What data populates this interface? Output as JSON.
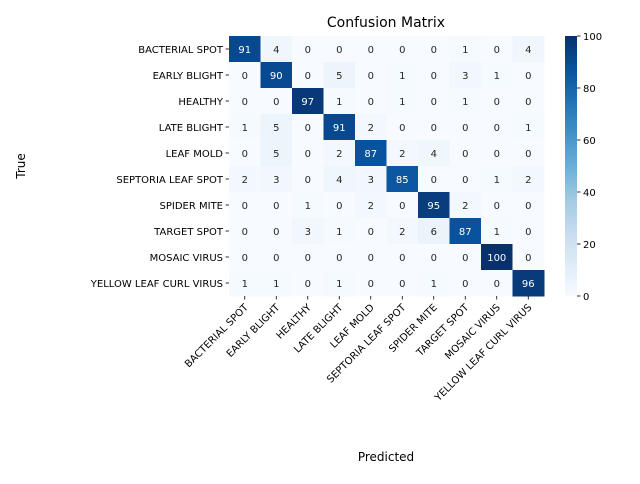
{
  "chart_data": {
    "type": "heatmap",
    "title": "Confusion Matrix",
    "xlabel": "Predicted",
    "ylabel": "True",
    "categories": [
      "BACTERIAL SPOT",
      "EARLY BLIGHT",
      "HEALTHY",
      "LATE BLIGHT",
      "LEAF MOLD",
      "SEPTORIA LEAF SPOT",
      "SPIDER MITE",
      "TARGET SPOT",
      "MOSAIC VIRUS",
      "YELLOW LEAF CURL VIRUS"
    ],
    "matrix": [
      [
        91,
        4,
        0,
        0,
        0,
        0,
        0,
        1,
        0,
        4
      ],
      [
        0,
        90,
        0,
        5,
        0,
        1,
        0,
        3,
        1,
        0
      ],
      [
        0,
        0,
        97,
        1,
        0,
        1,
        0,
        1,
        0,
        0
      ],
      [
        1,
        5,
        0,
        91,
        2,
        0,
        0,
        0,
        0,
        1
      ],
      [
        0,
        5,
        0,
        2,
        87,
        2,
        4,
        0,
        0,
        0
      ],
      [
        2,
        3,
        0,
        4,
        3,
        85,
        0,
        0,
        1,
        2
      ],
      [
        0,
        0,
        1,
        0,
        2,
        0,
        95,
        2,
        0,
        0
      ],
      [
        0,
        0,
        3,
        1,
        0,
        2,
        6,
        87,
        1,
        0
      ],
      [
        0,
        0,
        0,
        0,
        0,
        0,
        0,
        0,
        100,
        0
      ],
      [
        1,
        1,
        0,
        1,
        0,
        0,
        1,
        0,
        0,
        96
      ]
    ],
    "colorbar": {
      "range": [
        0,
        100
      ],
      "ticks": [
        "0",
        "20",
        "40",
        "60",
        "80",
        "100"
      ],
      "colormap": "Blues"
    },
    "grid": false
  }
}
